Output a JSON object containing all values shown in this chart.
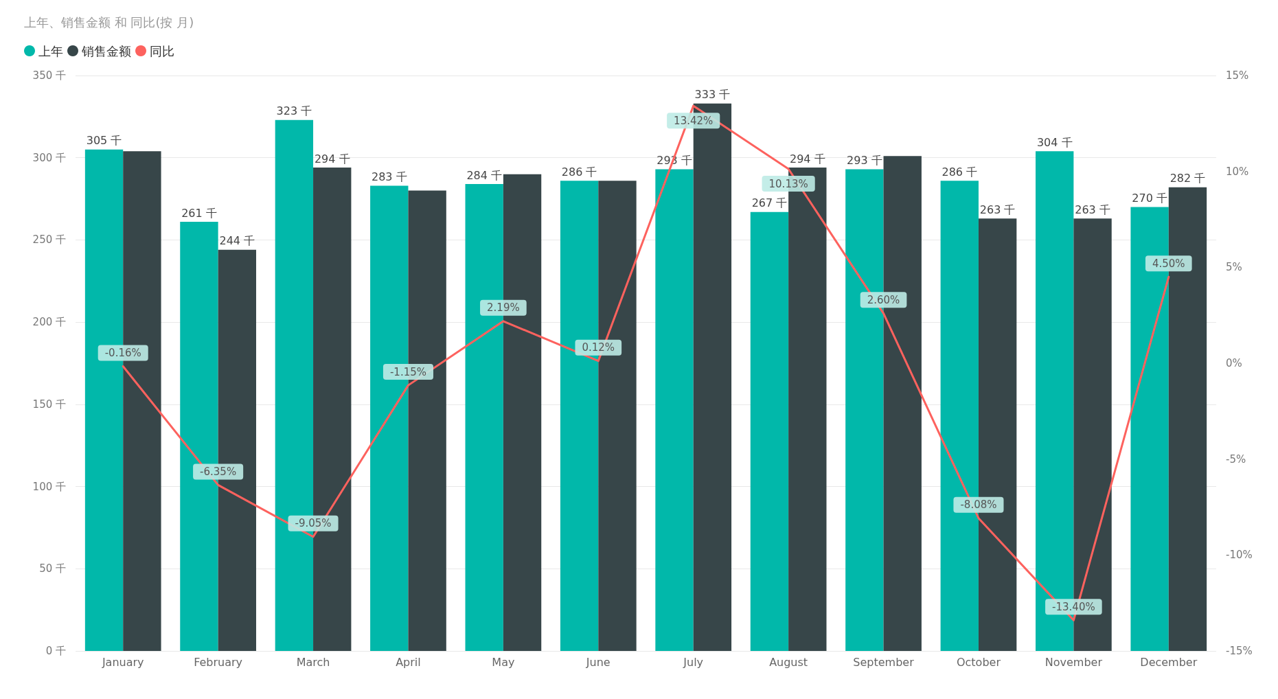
{
  "chart_data": {
    "type": "bar",
    "title": "上年、销售金额 和 同比(按 月)",
    "categories": [
      "January",
      "February",
      "March",
      "April",
      "May",
      "June",
      "July",
      "August",
      "September",
      "October",
      "November",
      "December"
    ],
    "series": [
      {
        "name": "上年",
        "color": "#01b8aa",
        "values": [
          305,
          261,
          323,
          283,
          284,
          286,
          293,
          267,
          293,
          286,
          304,
          270
        ],
        "value_labels": [
          "305 千",
          "261 千",
          "323 千",
          "283 千",
          "284 千",
          "286 千",
          "293 千",
          "267 千",
          "293 千",
          "286 千",
          "304 千",
          "270 千"
        ]
      },
      {
        "name": "销售金额",
        "color": "#374649",
        "values": [
          304,
          244,
          294,
          280,
          290,
          286,
          333,
          294,
          301,
          263,
          263,
          282
        ],
        "value_labels": [
          null,
          "244 千",
          "294 千",
          null,
          null,
          null,
          "333 千",
          "294 千",
          null,
          "263 千",
          "263 千",
          "282 千"
        ]
      },
      {
        "name": "同比",
        "type": "line",
        "axis": "y2",
        "color": "#fd625e",
        "values": [
          -0.16,
          -6.35,
          -9.05,
          -1.15,
          2.19,
          0.12,
          13.42,
          10.13,
          2.6,
          -8.08,
          -13.4,
          4.5
        ],
        "value_labels": [
          "-0.16%",
          "-6.35%",
          "-9.05%",
          "-1.15%",
          "2.19%",
          "0.12%",
          "13.42%",
          "10.13%",
          "2.60%",
          "-8.08%",
          "-13.40%",
          "4.50%"
        ]
      }
    ],
    "ylim": [
      0,
      350
    ],
    "yticks": [
      {
        "value": 0,
        "label": "0 千"
      },
      {
        "value": 50,
        "label": "50 千"
      },
      {
        "value": 100,
        "label": "100 千"
      },
      {
        "value": 150,
        "label": "150 千"
      },
      {
        "value": 200,
        "label": "200 千"
      },
      {
        "value": 250,
        "label": "250 千"
      },
      {
        "value": 300,
        "label": "300 千"
      },
      {
        "value": 350,
        "label": "350 千"
      }
    ],
    "y2lim": [
      -15,
      15
    ],
    "y2ticks": [
      {
        "value": -15,
        "label": "-15%"
      },
      {
        "value": -10,
        "label": "-10%"
      },
      {
        "value": -5,
        "label": "-5%"
      },
      {
        "value": 0,
        "label": "0%"
      },
      {
        "value": 5,
        "label": "5%"
      },
      {
        "value": 10,
        "label": "10%"
      },
      {
        "value": 15,
        "label": "15%"
      }
    ],
    "grid": "y",
    "legend": "top left",
    "marker": "none",
    "line_style": "solid"
  }
}
